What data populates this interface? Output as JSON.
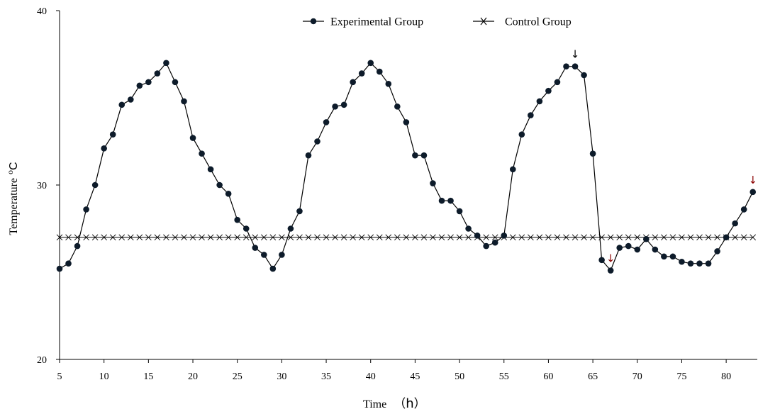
{
  "chart_data": {
    "type": "line",
    "title": "",
    "xlabel": "Time",
    "xlabel_unit": "h",
    "ylabel": "Temperature",
    "ylabel_unit": "C",
    "ylabel_unit_sup": "o",
    "xlim": [
      5,
      83.5
    ],
    "ylim": [
      20,
      40
    ],
    "x_ticks": [
      5,
      10,
      15,
      20,
      25,
      30,
      35,
      40,
      45,
      50,
      55,
      60,
      65,
      70,
      75,
      80
    ],
    "y_ticks": [
      20,
      30,
      40
    ],
    "grid": false,
    "legend_position": "top-center",
    "colors": {
      "line": "#000000",
      "marker": "#0d1b2a",
      "arrow_black": "#000000",
      "arrow_red": "#8b0000"
    },
    "series": [
      {
        "name": "Experimental Group",
        "marker": "filled-circle",
        "x": [
          5,
          6,
          7,
          8,
          9,
          10,
          11,
          12,
          13,
          14,
          15,
          16,
          17,
          18,
          19,
          20,
          21,
          22,
          23,
          24,
          25,
          26,
          27,
          28,
          29,
          30,
          31,
          32,
          33,
          34,
          35,
          36,
          37,
          38,
          39,
          40,
          41,
          42,
          43,
          44,
          45,
          46,
          47,
          48,
          49,
          50,
          51,
          52,
          53,
          54,
          55,
          56,
          57,
          58,
          59,
          60,
          61,
          62,
          63,
          64,
          65,
          66,
          67,
          68,
          69,
          70,
          71,
          72,
          73,
          74,
          75,
          76,
          77,
          78,
          79,
          80,
          81,
          82,
          83
        ],
        "values": [
          25.2,
          25.5,
          26.5,
          28.6,
          30.0,
          32.1,
          32.9,
          34.6,
          34.9,
          35.7,
          35.9,
          36.4,
          37.0,
          35.9,
          34.8,
          32.7,
          31.8,
          30.9,
          30.0,
          29.5,
          28.0,
          27.5,
          26.4,
          26.0,
          25.2,
          26.0,
          27.5,
          28.5,
          31.7,
          32.5,
          33.6,
          34.5,
          34.6,
          35.9,
          36.4,
          37.0,
          36.5,
          35.8,
          34.5,
          33.6,
          31.7,
          31.7,
          30.1,
          29.1,
          29.1,
          28.5,
          27.5,
          27.1,
          26.5,
          26.7,
          27.1,
          30.9,
          32.9,
          34.0,
          34.8,
          35.4,
          35.9,
          36.8,
          36.8,
          36.3,
          31.8,
          25.7,
          25.1,
          26.4,
          26.5,
          26.3,
          26.9,
          26.3,
          25.9,
          25.9,
          25.6,
          25.5,
          25.5,
          25.5,
          26.2,
          27.0,
          27.8,
          28.6,
          29.6
        ]
      },
      {
        "name": "Control Group",
        "marker": "cross",
        "x": [
          5,
          6,
          7,
          8,
          9,
          10,
          11,
          12,
          13,
          14,
          15,
          16,
          17,
          18,
          19,
          20,
          21,
          22,
          23,
          24,
          25,
          26,
          27,
          28,
          29,
          30,
          31,
          32,
          33,
          34,
          35,
          36,
          37,
          38,
          39,
          40,
          41,
          42,
          43,
          44,
          45,
          46,
          47,
          48,
          49,
          50,
          51,
          52,
          53,
          54,
          55,
          56,
          57,
          58,
          59,
          60,
          61,
          62,
          63,
          64,
          65,
          66,
          67,
          68,
          69,
          70,
          71,
          72,
          73,
          74,
          75,
          76,
          77,
          78,
          79,
          80,
          81,
          82,
          83
        ],
        "values": [
          27,
          27,
          27,
          27,
          27,
          27,
          27,
          27,
          27,
          27,
          27,
          27,
          27,
          27,
          27,
          27,
          27,
          27,
          27,
          27,
          27,
          27,
          27,
          27,
          27,
          27,
          27,
          27,
          27,
          27,
          27,
          27,
          27,
          27,
          27,
          27,
          27,
          27,
          27,
          27,
          27,
          27,
          27,
          27,
          27,
          27,
          27,
          27,
          27,
          27,
          27,
          27,
          27,
          27,
          27,
          27,
          27,
          27,
          27,
          27,
          27,
          27,
          27,
          27,
          27,
          27,
          27,
          27,
          27,
          27,
          27,
          27,
          27,
          27,
          27,
          27,
          27,
          27,
          27
        ]
      }
    ],
    "annotations": [
      {
        "symbol": "↓",
        "x": 63,
        "value": 36.8,
        "color": "black"
      },
      {
        "symbol": "↓",
        "x": 67,
        "value": 25.1,
        "color": "red"
      },
      {
        "symbol": "↓",
        "x": 83,
        "value": 29.6,
        "color": "red"
      }
    ]
  }
}
